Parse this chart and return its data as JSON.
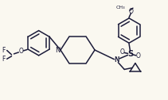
{
  "background_color": "#faf8f0",
  "line_color": "#1c1c3a",
  "line_width": 1.1,
  "figsize": [
    2.11,
    1.26
  ],
  "dpi": 100,
  "xlim": [
    0,
    211
  ],
  "ylim": [
    0,
    126
  ]
}
